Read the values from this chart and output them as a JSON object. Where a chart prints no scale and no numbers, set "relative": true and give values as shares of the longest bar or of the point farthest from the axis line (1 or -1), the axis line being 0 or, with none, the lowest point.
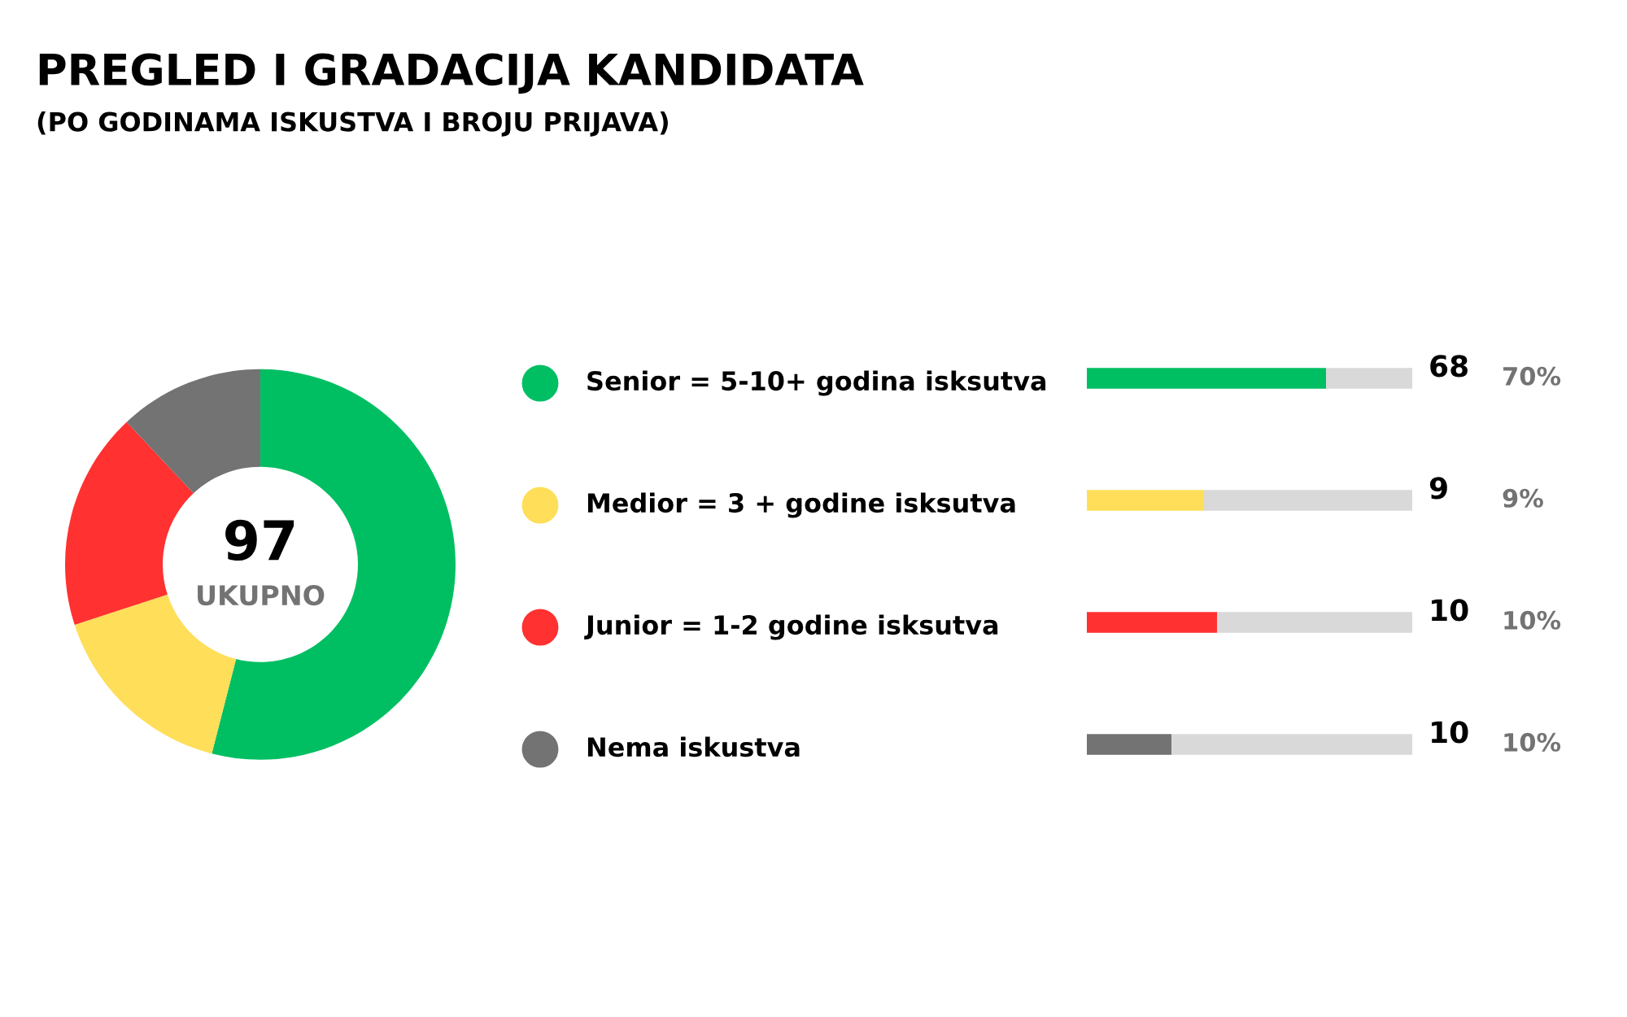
{
  "chart_data": [
    {
      "type": "donut",
      "title": "PREGLED I GRADACIJA KANDIDATA",
      "subtitle": "(PO GODINAMA ISKUSTVA I BROJU PRIJAVA)",
      "categories": [
        null,
        null,
        null,
        null
      ],
      "values": [
        54,
        16,
        18,
        12
      ],
      "colors": [
        "#00bf63",
        "#ffde59",
        "#ff3131",
        "#737373"
      ],
      "annotations": [
        "97",
        "UKUPNO"
      ]
    },
    {
      "type": "bar",
      "orientation": "horizontal",
      "stacked": true,
      "relative": true,
      "categories": [
        "Senior = 5-10+ godina isksutva",
        "Medior = 3 + godine isksutva",
        "Junior = 1-2 godine isksutva",
        "Nema iskustva"
      ],
      "series": [
        {
          "colors": [
            "#00bf63",
            "#ffde59",
            "#ff3131",
            "#737373"
          ],
          "values": [
            0.735,
            0.36,
            0.4,
            0.26
          ]
        },
        {
          "color": "#d9d9d9",
          "values": [
            0.265,
            0.64,
            0.6,
            0.74
          ]
        }
      ],
      "annotations": [
        "68",
        "70%",
        "9",
        "9%",
        "10",
        "10%",
        "10",
        "10%"
      ]
    }
  ]
}
